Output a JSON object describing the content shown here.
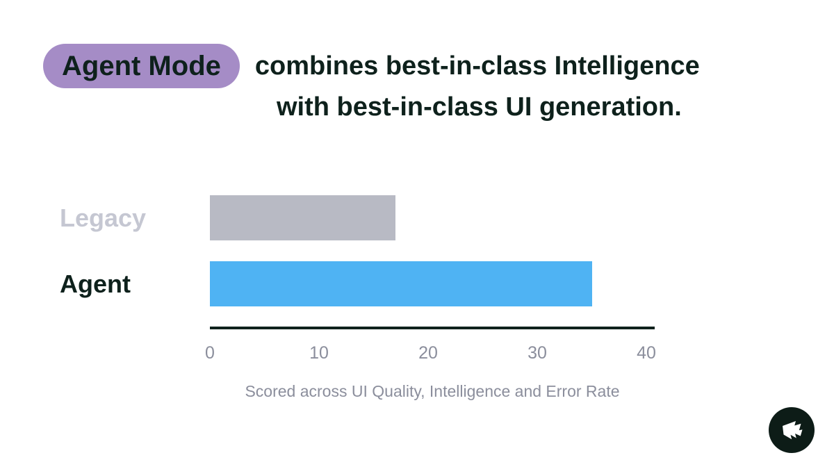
{
  "title": {
    "highlight": "Agent Mode",
    "line1": "combines best-in-class Intelligence",
    "line2": "with best-in-class UI generation."
  },
  "chart_data": {
    "type": "bar",
    "orientation": "horizontal",
    "categories": [
      "Legacy",
      "Agent"
    ],
    "values": [
      17,
      35
    ],
    "xlim": [
      0,
      40
    ],
    "x_ticks": [
      "0",
      "10",
      "20",
      "30",
      "40"
    ],
    "caption": "Scored across UI Quality, Intelligence and Error Rate",
    "bar_colors": [
      "#b8bac4",
      "#4fb3f3"
    ],
    "category_label_colors": [
      "#c5c7d2",
      "#0e211c"
    ],
    "grid": false,
    "legend": false
  },
  "colors": {
    "highlight_pill": "#a58cc6",
    "title_text": "#0e211c",
    "axis_line": "#0f211c",
    "tick_text": "#8b8e9c",
    "caption_text": "#8b8e9c",
    "logo_background": "#0d1c17",
    "logo_glyph": "#ffffff"
  },
  "logo": {
    "name": "flag-logo"
  }
}
